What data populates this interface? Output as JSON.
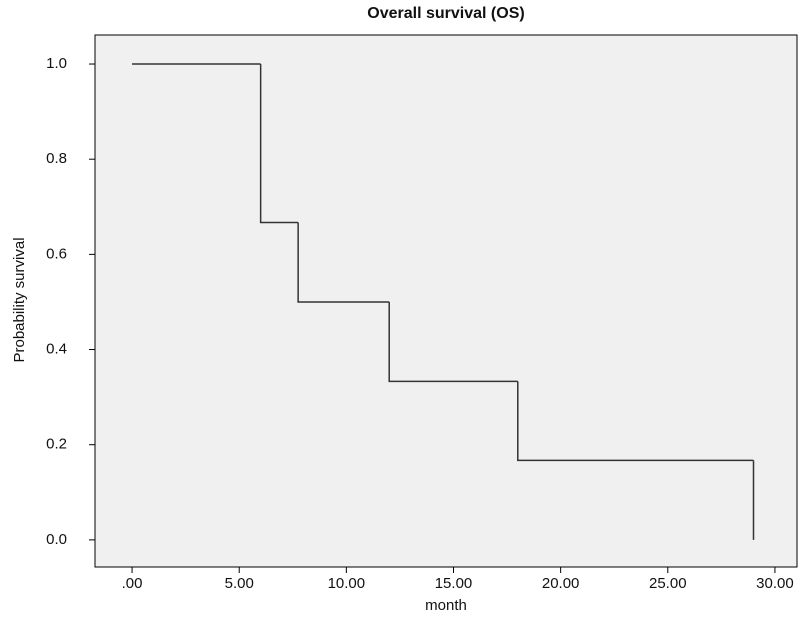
{
  "chart_data": {
    "type": "step",
    "title": "Overall survival (OS)",
    "xlabel": "month",
    "ylabel": "Probability survival",
    "x": [
      0,
      6,
      7.75,
      12,
      18,
      29
    ],
    "series": [
      {
        "color": "#333333",
        "values": [
          1.0,
          0.667,
          0.5,
          0.333,
          0.167,
          0.0
        ]
      }
    ],
    "xlim": [
      -1.73,
      31.03
    ],
    "ylim": [
      -0.057,
      1.061
    ],
    "xticks": [
      {
        "value": 0,
        "label": ".00"
      },
      {
        "value": 5,
        "label": "5.00"
      },
      {
        "value": 10,
        "label": "10.00"
      },
      {
        "value": 15,
        "label": "15.00"
      },
      {
        "value": 20,
        "label": "20.00"
      },
      {
        "value": 25,
        "label": "25.00"
      },
      {
        "value": 30,
        "label": "30.00"
      }
    ],
    "yticks": [
      {
        "value": 0,
        "label": "0.0"
      },
      {
        "value": 0.2,
        "label": "0.2"
      },
      {
        "value": 0.4,
        "label": "0.4"
      },
      {
        "value": 0.6,
        "label": "0.6"
      },
      {
        "value": 0.8,
        "label": "0.8"
      },
      {
        "value": 1,
        "label": "1.0"
      }
    ],
    "background": "#f0f0f0"
  }
}
